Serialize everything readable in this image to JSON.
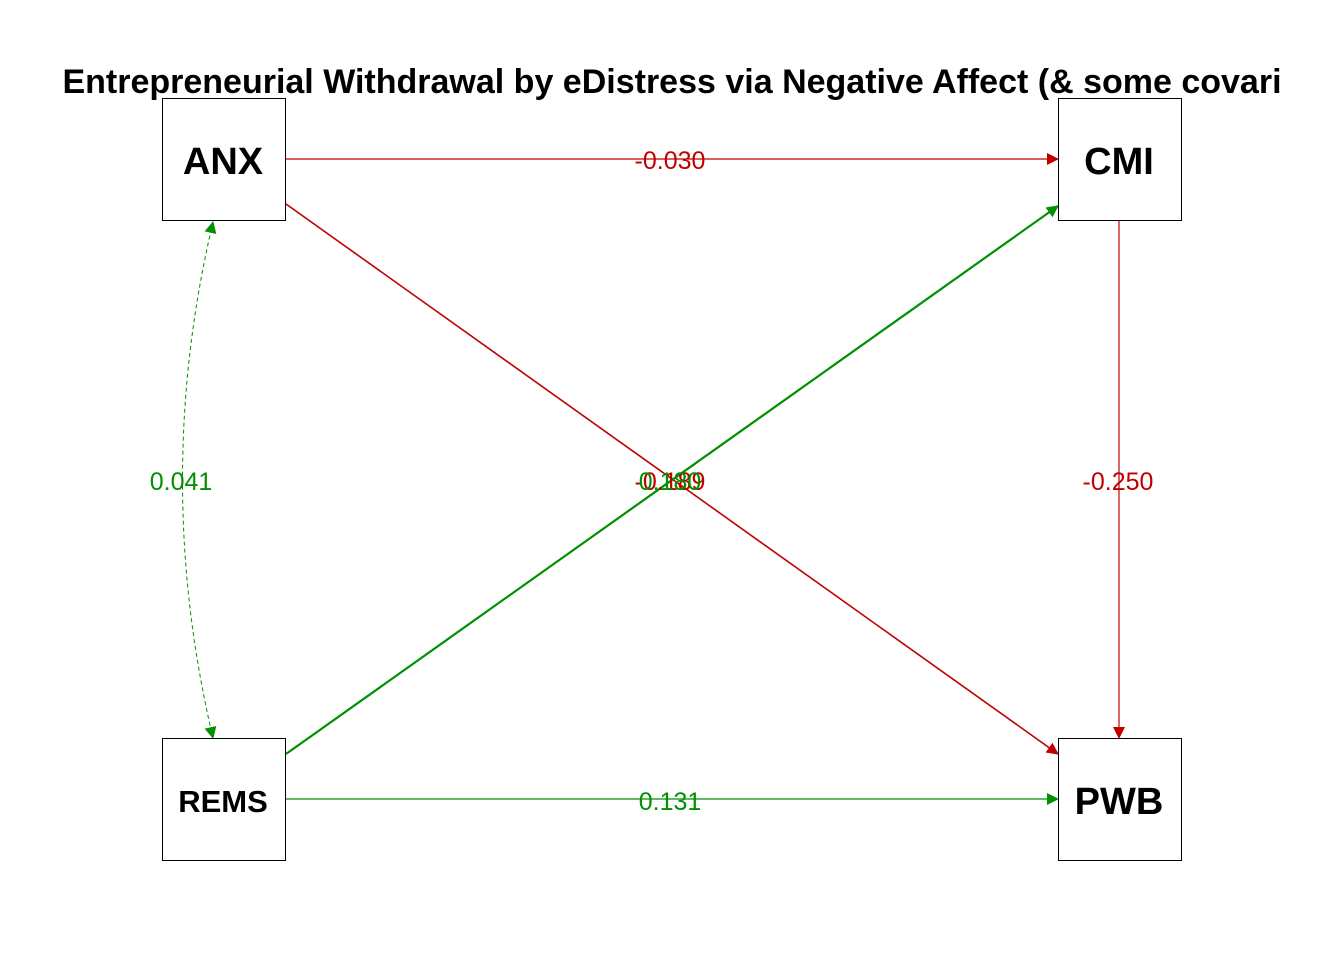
{
  "title": "Entrepreneurial Withdrawal by eDistress via Negative Affect (& some covari",
  "colors": {
    "negative": "#C00000",
    "positive": "#009000"
  },
  "nodes": {
    "anx": "ANX",
    "cmi": "CMI",
    "rems": "REMS",
    "pwb": "PWB"
  },
  "edges": {
    "anx_cmi": "-0.030",
    "anx_pwb": "-0.189",
    "rems_cmi": "0.180",
    "cmi_pwb": "-0.250",
    "rems_pwb": "0.131",
    "anx_rems": "0.041"
  }
}
